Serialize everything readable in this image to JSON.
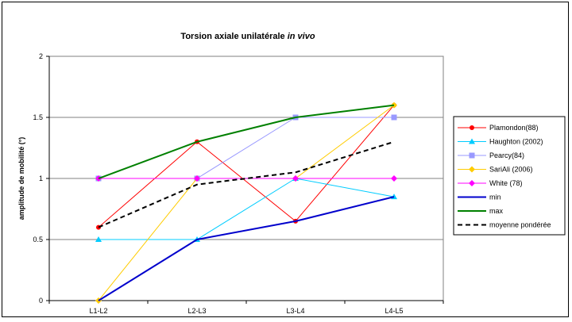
{
  "chart_data": {
    "type": "line",
    "title": "Torsion axiale unilatérale ",
    "title_italic": "in vivo",
    "xlabel": "",
    "ylabel": "amplitude de mobilité (°)",
    "categories": [
      "L1-L2",
      "L2-L3",
      "L3-L4",
      "L4-L5"
    ],
    "ylim": [
      0,
      2
    ],
    "yticks": [
      "0",
      "0.5",
      "1",
      "1.5",
      "2"
    ],
    "grid": true,
    "legend_position": "right",
    "series": [
      {
        "name": "Plamondon(88)",
        "values": [
          0.6,
          1.3,
          0.65,
          1.6
        ],
        "color": "#ff0000",
        "marker": "circle",
        "style": "solid",
        "width": 1
      },
      {
        "name": "Haughton (2002)",
        "values": [
          0.5,
          0.5,
          1.0,
          0.85
        ],
        "color": "#00ccff",
        "marker": "triangle",
        "style": "solid",
        "width": 1
      },
      {
        "name": "Pearcy(84)",
        "values": [
          1.0,
          1.0,
          1.5,
          1.5
        ],
        "color": "#9999ff",
        "marker": "square",
        "style": "solid",
        "width": 1
      },
      {
        "name": "SariAli (2006)",
        "values": [
          0.0,
          1.0,
          1.0,
          1.6
        ],
        "color": "#ffcc00",
        "marker": "diamond",
        "style": "solid",
        "width": 1
      },
      {
        "name": "White (78)",
        "values": [
          1.0,
          1.0,
          1.0,
          1.0
        ],
        "color": "#ff00ff",
        "marker": "diamond",
        "style": "solid",
        "width": 1
      },
      {
        "name": "min",
        "values": [
          0.0,
          0.5,
          0.65,
          0.85
        ],
        "color": "#0000cc",
        "marker": "none",
        "style": "solid",
        "width": 2
      },
      {
        "name": "max",
        "values": [
          1.0,
          1.3,
          1.5,
          1.6
        ],
        "color": "#008000",
        "marker": "none",
        "style": "solid",
        "width": 2
      },
      {
        "name": "moyenne pondérée",
        "values": [
          0.6,
          0.95,
          1.05,
          1.3
        ],
        "color": "#000000",
        "marker": "none",
        "style": "dashed",
        "width": 2
      }
    ]
  }
}
